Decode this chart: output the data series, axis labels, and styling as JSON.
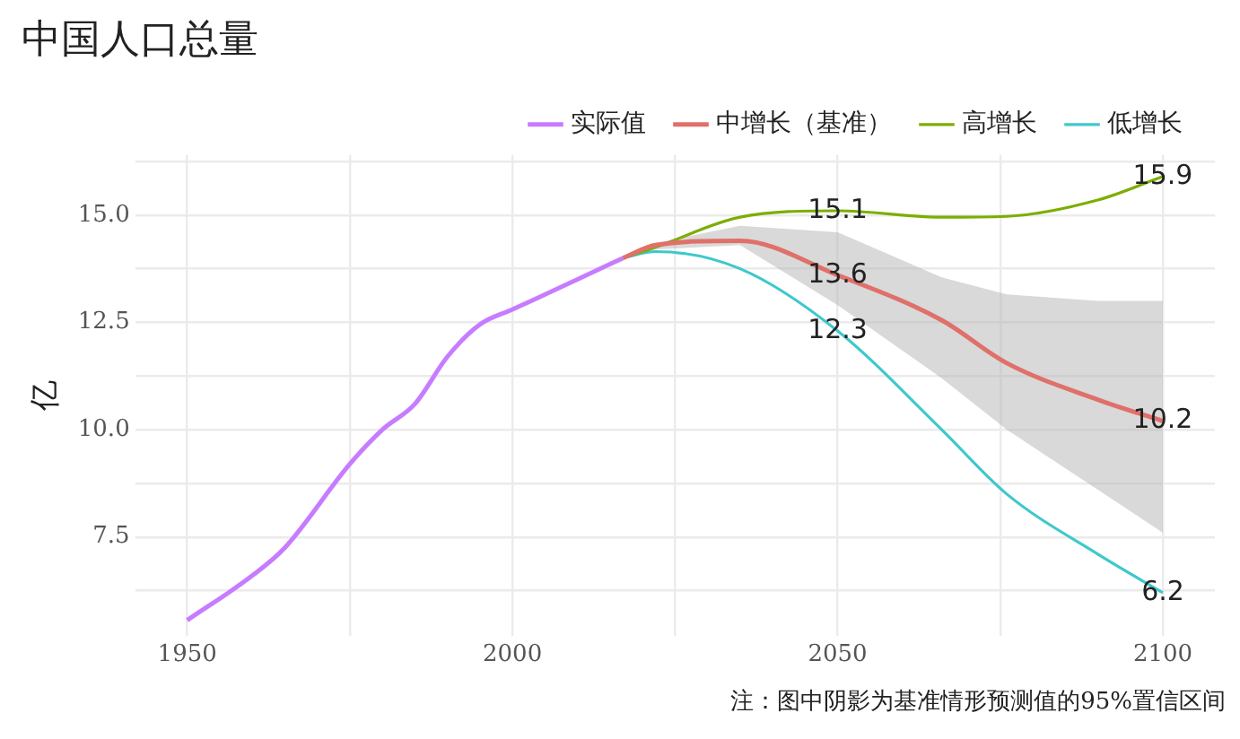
{
  "chart_data": {
    "type": "line",
    "title": "中国人口总量",
    "ylabel": "亿",
    "annotations": [
      "注：图中阴影为基准情形预测值的95%置信区间"
    ],
    "xlim": [
      1942,
      2108
    ],
    "ylim": [
      5.2,
      16.4
    ],
    "xticks": [
      1950,
      {
        "value": 1975,
        "label": null
      },
      2000,
      {
        "value": 2025,
        "label": null
      },
      2050,
      {
        "value": 2075,
        "label": null
      },
      2100
    ],
    "yticks": [
      {
        "value": 6.25,
        "label": null
      },
      7.5,
      {
        "value": 8.75,
        "label": null
      },
      {
        "value": 10,
        "label": "10.0"
      },
      {
        "value": 11.25,
        "label": null
      },
      12.5,
      {
        "value": 13.75,
        "label": null
      },
      {
        "value": 15,
        "label": "15.0"
      },
      {
        "value": 16.25,
        "label": null
      }
    ],
    "grid": true,
    "legend": "top",
    "marker": "none",
    "series": [
      {
        "name": "实际值",
        "color": "#c77cff",
        "x": [
          1950,
          1960,
          1965,
          1975,
          1980,
          1985,
          1990,
          1995,
          2000,
          2010,
          2017
        ],
        "values": [
          5.56,
          6.6,
          7.25,
          9.2,
          10.0,
          10.6,
          11.7,
          12.45,
          12.8,
          13.5,
          14.0
        ]
      },
      {
        "name": "中增长（基准）",
        "color": "#e0706a",
        "x": [
          2017,
          2022,
          2035,
          2050,
          2066,
          2076,
          2090,
          2100
        ],
        "values": [
          14.0,
          14.3,
          14.4,
          13.6,
          12.55,
          11.55,
          10.7,
          10.2
        ],
        "lower": [
          14.0,
          14.2,
          14.3,
          12.9,
          11.2,
          10.0,
          8.6,
          7.6
        ],
        "upper": [
          14.0,
          14.35,
          14.75,
          14.6,
          13.55,
          13.15,
          13.0,
          13.0
        ],
        "value_labels": [
          null,
          null,
          null,
          "13.6",
          null,
          null,
          null,
          "10.2"
        ]
      },
      {
        "name": "高增长",
        "color": "#7cae00",
        "x": [
          2017,
          2022,
          2035,
          2050,
          2066,
          2076,
          2090,
          2100
        ],
        "values": [
          14.0,
          14.25,
          14.95,
          15.1,
          14.95,
          14.97,
          15.35,
          15.9
        ],
        "value_labels": [
          null,
          null,
          null,
          "15.1",
          null,
          null,
          null,
          "15.9"
        ]
      },
      {
        "name": "低增长",
        "color": "#3fc8cc",
        "x": [
          2017,
          2022,
          2035,
          2050,
          2066,
          2076,
          2090,
          2100
        ],
        "values": [
          14.0,
          14.15,
          13.75,
          12.3,
          10.0,
          8.5,
          7.1,
          6.2
        ],
        "value_labels": [
          null,
          null,
          null,
          "12.3",
          null,
          null,
          null,
          "6.2"
        ]
      }
    ]
  }
}
